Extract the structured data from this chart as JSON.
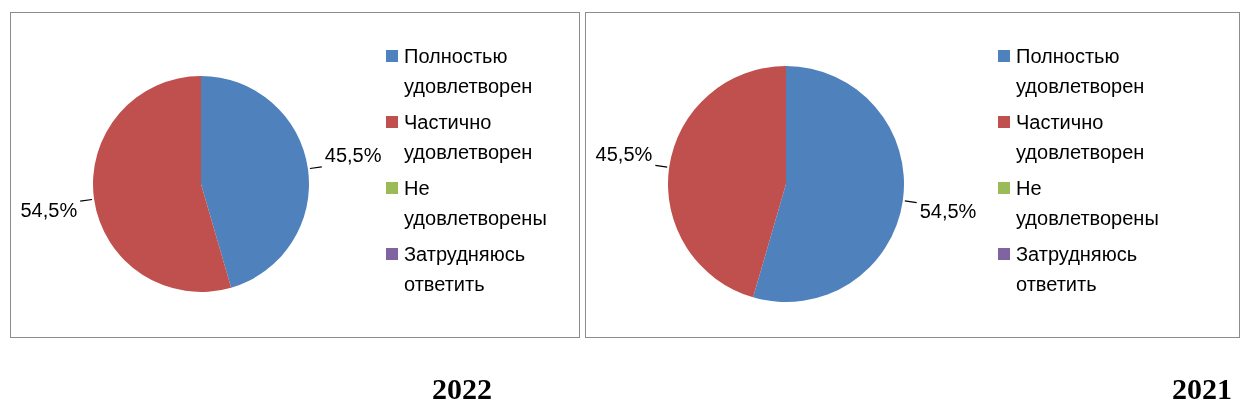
{
  "chart_data": [
    {
      "type": "pie",
      "title": "2022",
      "categories": [
        "Полностью удовлетворен",
        "Частично удовлетворен",
        "Не удовлетворены",
        "Затрудняюсь ответить"
      ],
      "values": [
        45.5,
        54.5,
        0,
        0
      ],
      "colors": [
        "#4f81bd",
        "#c0504d",
        "#9bbb59",
        "#8064a2"
      ],
      "value_labels": [
        "45,5%",
        "54,5%",
        null,
        null
      ],
      "legend": "right"
    },
    {
      "type": "pie",
      "title": "2021",
      "categories": [
        "Полностью удовлетворен",
        "Частично удовлетворен",
        "Не удовлетворены",
        "Затрудняюсь ответить"
      ],
      "values": [
        54.5,
        45.5,
        0,
        0
      ],
      "colors": [
        "#4f81bd",
        "#c0504d",
        "#9bbb59",
        "#8064a2"
      ],
      "value_labels": [
        "54,5%",
        "45,5%",
        null,
        null
      ],
      "legend": "right"
    }
  ]
}
